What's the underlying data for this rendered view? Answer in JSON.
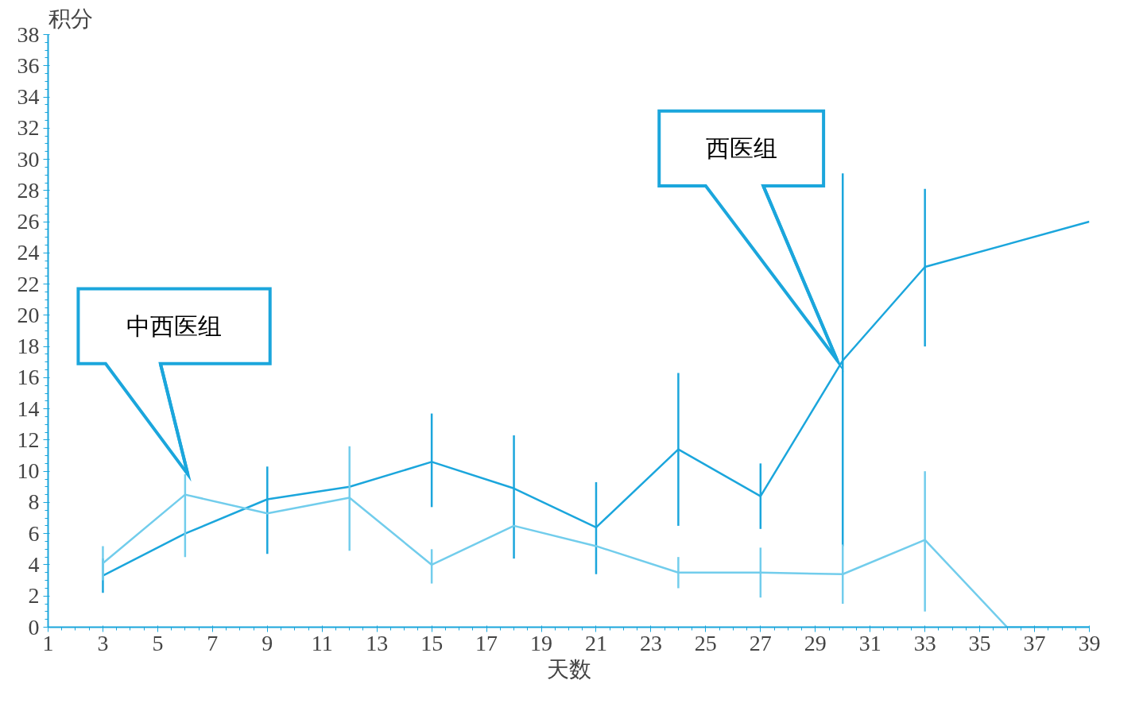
{
  "chart_data": {
    "type": "line",
    "xlabel": "天数",
    "ylabel": "积分",
    "xlim": [
      1,
      39
    ],
    "xticks": [
      1,
      3,
      5,
      7,
      9,
      11,
      13,
      15,
      17,
      19,
      21,
      23,
      25,
      27,
      29,
      31,
      33,
      35,
      37,
      39
    ],
    "ylim": [
      0,
      38
    ],
    "yticks": [
      0,
      2,
      4,
      6,
      8,
      10,
      12,
      14,
      16,
      18,
      20,
      22,
      24,
      26,
      28,
      30,
      32,
      34,
      36,
      38
    ],
    "grid": false,
    "marker": "none",
    "line_style": "solid",
    "series": [
      {
        "color": "#1ba6dc",
        "x": [
          3,
          6,
          9,
          12,
          15,
          18,
          21,
          24,
          27,
          30,
          33,
          39
        ],
        "values": [
          3.3,
          6.0,
          8.2,
          9.0,
          10.6,
          8.9,
          6.4,
          11.4,
          8.4,
          17.1,
          23.1,
          26.0
        ],
        "errors": [
          [
            2.2,
            4.4
          ],
          null,
          [
            4.7,
            10.3
          ],
          null,
          [
            7.7,
            13.7
          ],
          [
            4.4,
            12.3
          ],
          [
            3.4,
            9.3
          ],
          [
            6.5,
            16.3
          ],
          [
            6.3,
            10.5
          ],
          [
            5.2,
            29.1
          ],
          [
            18.0,
            28.1
          ],
          null
        ]
      },
      {
        "color": "#72cdec",
        "x": [
          3,
          6,
          9,
          12,
          15,
          18,
          21,
          24,
          27,
          30,
          33,
          36,
          39
        ],
        "values": [
          4.1,
          8.5,
          7.3,
          8.3,
          4.0,
          6.5,
          5.2,
          3.5,
          3.5,
          3.4,
          5.6,
          0,
          0
        ],
        "errors": [
          [
            3.0,
            5.2
          ],
          [
            4.5,
            9.8
          ],
          null,
          [
            4.9,
            11.6
          ],
          [
            2.8,
            5.0
          ],
          null,
          null,
          [
            2.5,
            4.5
          ],
          [
            1.9,
            5.1
          ],
          [
            1.5,
            5.3
          ],
          [
            1.0,
            10.0
          ],
          null,
          null
        ]
      }
    ],
    "annotations": [
      {
        "text": "中西医组",
        "x": 6.1,
        "y": 9.8
      },
      {
        "text": "西医组",
        "x": 29.8,
        "y": 17.1
      }
    ]
  }
}
